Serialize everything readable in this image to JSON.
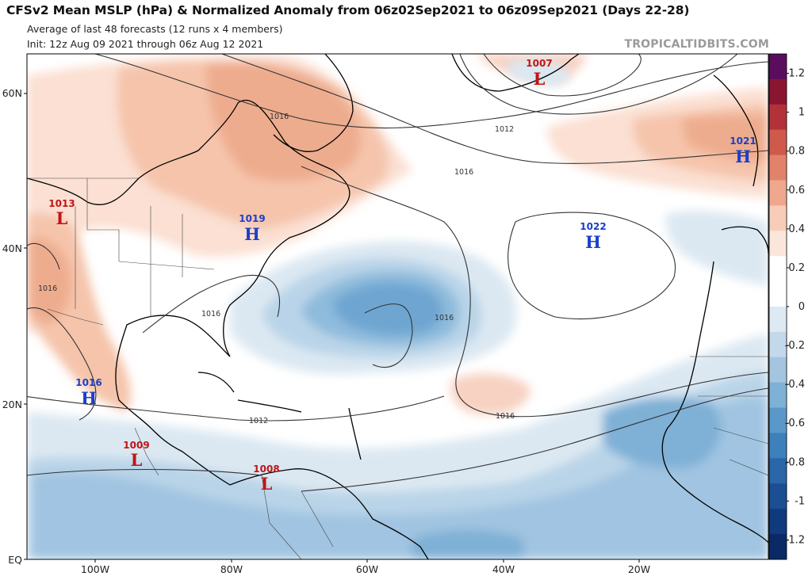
{
  "header": {
    "title": "CFSv2 Mean MSLP (hPa) & Normalized Anomaly from 06z02Sep2021 to 06z09Sep2021 (Days 22-28)",
    "subtitle": "Average of last 48 forecasts (12 runs x 4 members)",
    "init": "Init: 12z Aug 09 2021 through 06z Aug 12 2021",
    "brand": "TROPICALTIDBITS.COM"
  },
  "map": {
    "lat_labels": [
      "60N",
      "40N",
      "20N",
      "EQ"
    ],
    "lon_labels": [
      "100W",
      "80W",
      "60W",
      "40W",
      "20W"
    ],
    "isobar_labels": [
      "1016",
      "1012",
      "1016",
      "1016",
      "1016",
      "1016",
      "1012",
      "1016"
    ],
    "centers": [
      {
        "type": "L",
        "value": "1007"
      },
      {
        "type": "H",
        "value": "1021"
      },
      {
        "type": "L",
        "value": "1013"
      },
      {
        "type": "H",
        "value": "1019"
      },
      {
        "type": "H",
        "value": "1022"
      },
      {
        "type": "H",
        "value": "1016"
      },
      {
        "type": "L",
        "value": "1009"
      },
      {
        "type": "L",
        "value": "1008"
      }
    ]
  },
  "colorbar": {
    "labels": [
      "1.2",
      "1",
      "0.8",
      "0.6",
      "0.4",
      "0.2",
      "0",
      "-0.2",
      "-0.4",
      "-0.6",
      "-0.8",
      "-1",
      "-1.2"
    ],
    "colors": [
      "#5a0d5e",
      "#8a1530",
      "#b3323a",
      "#cf5a4c",
      "#e3826a",
      "#efa88d",
      "#f7cdb9",
      "#fbe6dc",
      "#ffffff",
      "#ffffff",
      "#dde9f3",
      "#c3d8ea",
      "#a4c5e0",
      "#7fb0d6",
      "#5a98c9",
      "#3d80bb",
      "#2a66a8",
      "#1c4e93",
      "#0f3a7d",
      "#0a2a66"
    ]
  }
}
